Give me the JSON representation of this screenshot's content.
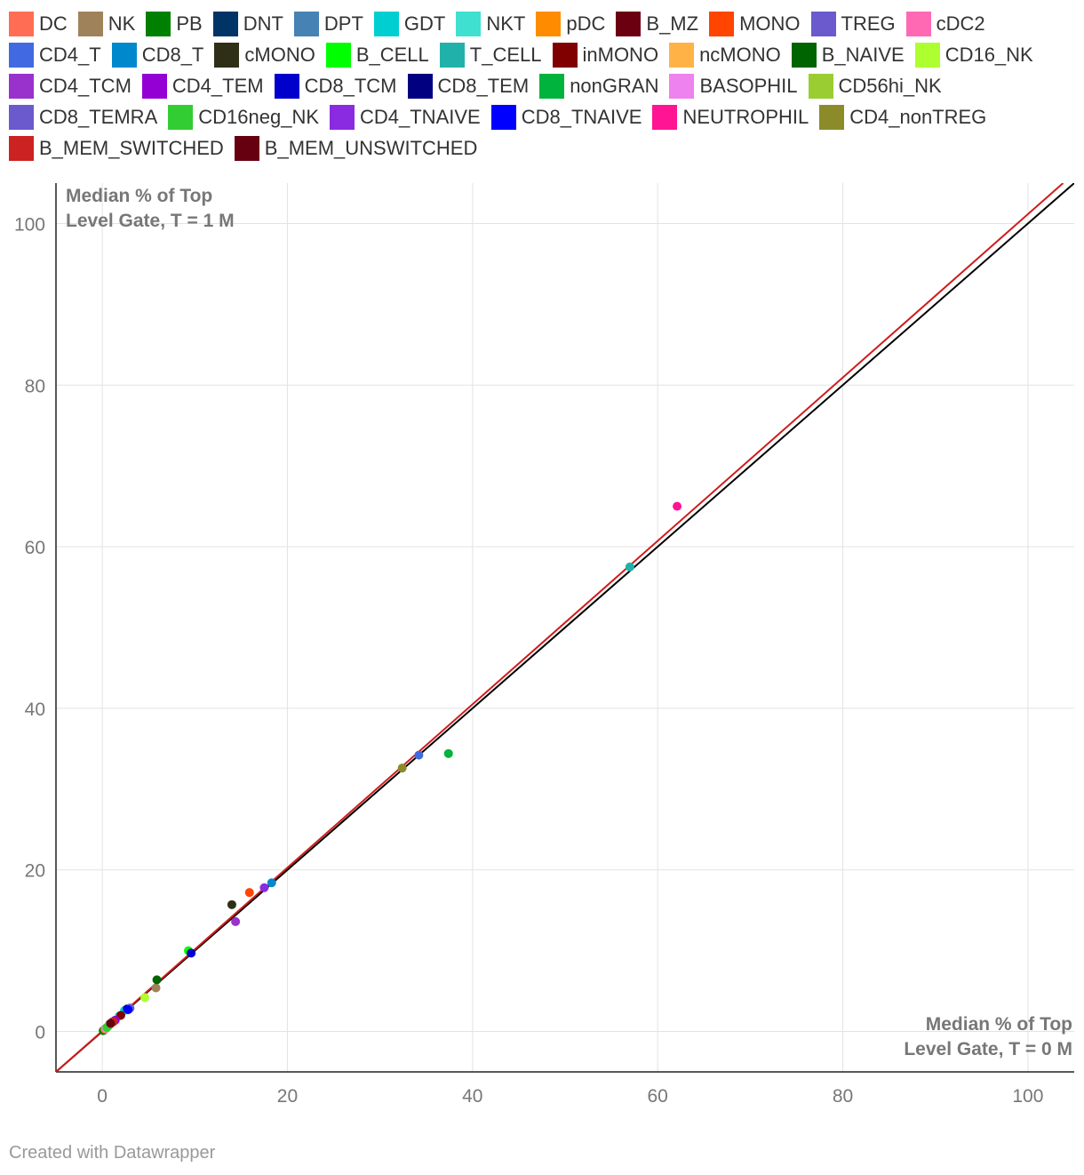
{
  "chart_data": {
    "type": "scatter",
    "title": "",
    "ylabel": [
      "Median % of Top",
      "Level Gate, T = 1 M"
    ],
    "xlabel": [
      "Median % of Top",
      "Level Gate, T = 0 M"
    ],
    "xlim": [
      -5,
      105
    ],
    "ylim": [
      -5,
      105
    ],
    "xticks": [
      0,
      20,
      40,
      60,
      80,
      100
    ],
    "yticks": [
      0,
      20,
      40,
      60,
      80,
      100
    ],
    "grid": true,
    "legend_position": "top",
    "reference_lines": [
      {
        "name": "identity",
        "color": "#000000",
        "points": [
          [
            -5,
            -5
          ],
          [
            105,
            105
          ]
        ]
      },
      {
        "name": "fit",
        "color": "#d01c1c",
        "points": [
          [
            -5,
            -5
          ],
          [
            103.8,
            105
          ]
        ]
      }
    ],
    "series": [
      {
        "name": "DC",
        "color": "#ff6e54",
        "points": [
          [
            0.6,
            0.6
          ]
        ]
      },
      {
        "name": "NK",
        "color": "#a0825a",
        "points": [
          [
            5.8,
            5.4
          ]
        ]
      },
      {
        "name": "PB",
        "color": "#008000",
        "points": [
          [
            0.1,
            0.1
          ]
        ]
      },
      {
        "name": "DNT",
        "color": "#003366",
        "points": [
          [
            0.3,
            0.3
          ]
        ]
      },
      {
        "name": "DPT",
        "color": "#4682b4",
        "points": [
          [
            0.4,
            0.4
          ]
        ]
      },
      {
        "name": "GDT",
        "color": "#00ced1",
        "points": [
          [
            2.4,
            2.6
          ]
        ]
      },
      {
        "name": "NKT",
        "color": "#40e0d0",
        "points": [
          [
            1.8,
            1.9
          ]
        ]
      },
      {
        "name": "pDC",
        "color": "#ff8c00",
        "points": [
          [
            0.3,
            0.3
          ]
        ]
      },
      {
        "name": "B_MZ",
        "color": "#6b0010",
        "points": [
          [
            0.8,
            0.9
          ]
        ]
      },
      {
        "name": "MONO",
        "color": "#ff4500",
        "points": [
          [
            15.9,
            17.2
          ]
        ]
      },
      {
        "name": "TREG",
        "color": "#6a5acd",
        "points": [
          [
            1.1,
            1.2
          ]
        ]
      },
      {
        "name": "cDC2",
        "color": "#ff69b4",
        "points": [
          [
            0.5,
            0.5
          ]
        ]
      },
      {
        "name": "CD4_T",
        "color": "#4169e1",
        "points": [
          [
            34.2,
            34.2
          ]
        ]
      },
      {
        "name": "CD8_T",
        "color": "#0088cc",
        "points": [
          [
            18.3,
            18.4
          ]
        ]
      },
      {
        "name": "cMONO",
        "color": "#2f2f18",
        "points": [
          [
            14.0,
            15.7
          ]
        ]
      },
      {
        "name": "B_CELL",
        "color": "#00ff00",
        "points": [
          [
            9.3,
            10.0
          ]
        ]
      },
      {
        "name": "T_CELL",
        "color": "#20b2aa",
        "points": [
          [
            57.0,
            57.5
          ]
        ]
      },
      {
        "name": "inMONO",
        "color": "#800000",
        "points": [
          [
            2.0,
            2.0
          ]
        ]
      },
      {
        "name": "ncMONO",
        "color": "#ffb347",
        "points": [
          [
            0.9,
            0.9
          ]
        ]
      },
      {
        "name": "B_NAIVE",
        "color": "#006400",
        "points": [
          [
            5.9,
            6.4
          ]
        ]
      },
      {
        "name": "CD16_NK",
        "color": "#adff2f",
        "points": [
          [
            4.6,
            4.2
          ]
        ]
      },
      {
        "name": "CD4_TCM",
        "color": "#9932cc",
        "points": [
          [
            14.4,
            13.6
          ]
        ]
      },
      {
        "name": "CD4_TEM",
        "color": "#9400d3",
        "points": [
          [
            1.4,
            1.4
          ]
        ]
      },
      {
        "name": "CD8_TCM",
        "color": "#0000cd",
        "points": [
          [
            9.6,
            9.7
          ]
        ]
      },
      {
        "name": "CD8_TEM",
        "color": "#000080",
        "points": [
          [
            2.7,
            2.8
          ]
        ]
      },
      {
        "name": "nonGRAN",
        "color": "#00b33c",
        "points": [
          [
            37.4,
            34.4
          ]
        ]
      },
      {
        "name": "BASOPHIL",
        "color": "#ee82ee",
        "points": [
          [
            0.4,
            0.4
          ]
        ]
      },
      {
        "name": "CD56hi_NK",
        "color": "#9acd32",
        "points": [
          [
            0.7,
            0.7
          ]
        ]
      },
      {
        "name": "CD8_TEMRA",
        "color": "#6a5acd",
        "points": [
          [
            3.0,
            2.9
          ]
        ]
      },
      {
        "name": "CD16neg_NK",
        "color": "#32cd32",
        "points": [
          [
            0.5,
            0.5
          ]
        ]
      },
      {
        "name": "CD4_TNAIVE",
        "color": "#8a2be2",
        "points": [
          [
            17.5,
            17.8
          ]
        ]
      },
      {
        "name": "CD8_TNAIVE",
        "color": "#0000ff",
        "points": [
          [
            2.8,
            2.7
          ]
        ]
      },
      {
        "name": "NEUTROPHIL",
        "color": "#ff1493",
        "points": [
          [
            62.1,
            65.0
          ]
        ]
      },
      {
        "name": "CD4_nonTREG",
        "color": "#8b8b2a",
        "points": [
          [
            32.4,
            32.6
          ]
        ]
      },
      {
        "name": "B_MEM_SWITCHED",
        "color": "#cc2222",
        "points": [
          [
            1.2,
            1.2
          ]
        ]
      },
      {
        "name": "B_MEM_UNSWITCHED",
        "color": "#660011",
        "points": [
          [
            0.9,
            1.0
          ]
        ]
      }
    ]
  },
  "footer": "Created with Datawrapper"
}
